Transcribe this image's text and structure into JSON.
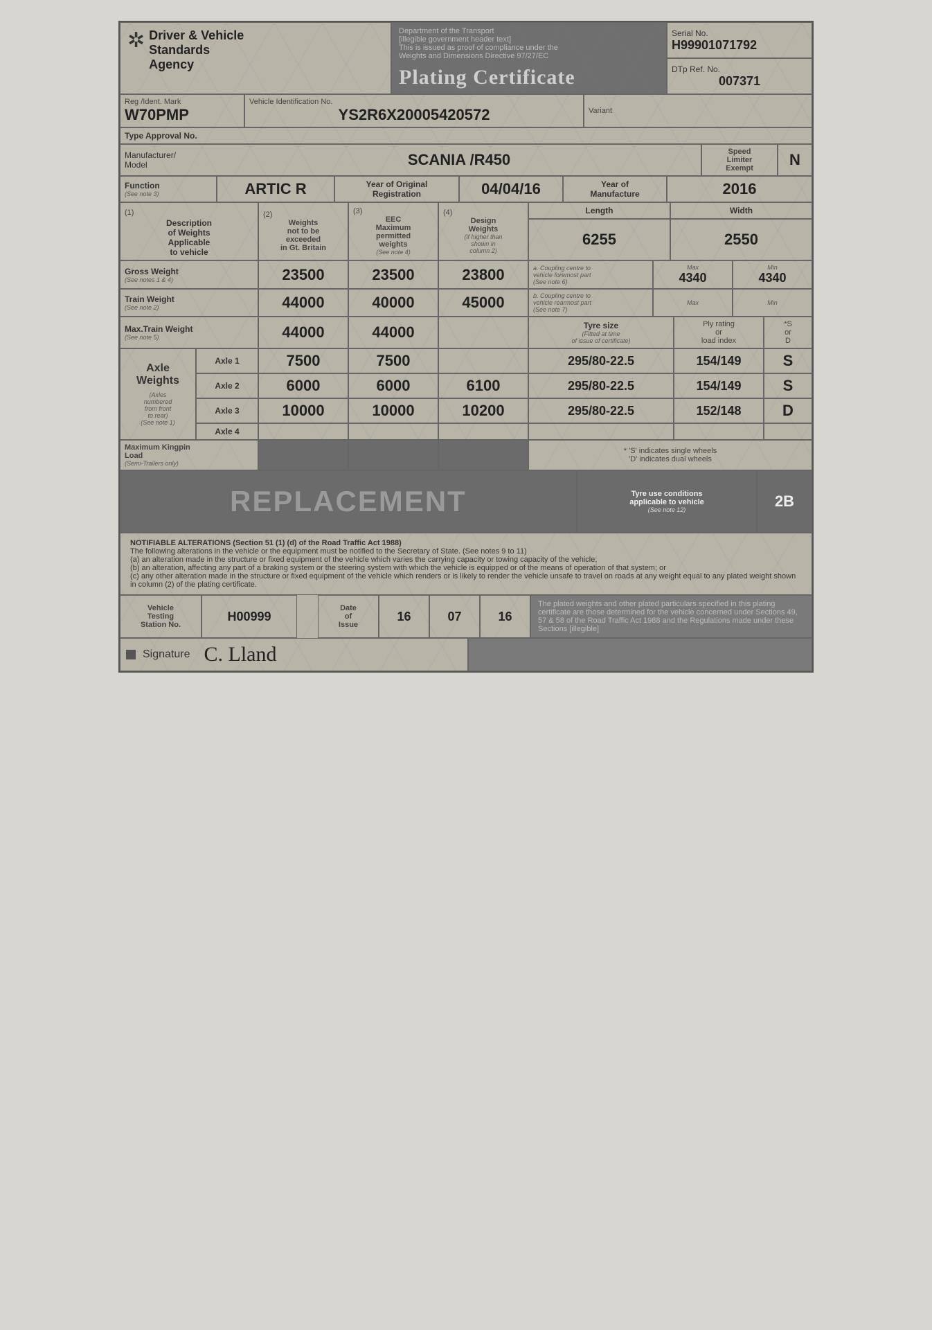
{
  "header": {
    "agency_line1": "Driver & Vehicle",
    "agency_line2": "Standards",
    "agency_line3": "Agency",
    "mid_text_lines": [
      "Department of the Transport",
      "[illegible government header text]",
      "This is issued as proof of compliance under the",
      "Weights and Dimensions Directive 97/27/EC"
    ],
    "plating_title": "Plating Certificate",
    "serial_label": "Serial No.",
    "serial_value": "H99901071792",
    "dtp_label": "DTp Ref. No.",
    "dtp_value": "007371"
  },
  "ident": {
    "reg_label": "Reg /Ident. Mark",
    "reg_value": "W70PMP",
    "vin_label": "Vehicle Identification No.",
    "vin_value": "YS2R6X20005420572",
    "variant_label": "Variant",
    "variant_value": ""
  },
  "approval": {
    "label": "Type Approval No.",
    "value": ""
  },
  "mfr": {
    "label": "Manufacturer/\nModel",
    "value": "SCANIA /R450",
    "speed_label": "Speed\nLimiter\nExempt",
    "speed_value": "N"
  },
  "func": {
    "func_label": "Function",
    "func_note": "(See note 3)",
    "func_value": "ARTIC R",
    "yor_label": "Year of Original\nRegistration",
    "yor_value": "04/04/16",
    "yom_label": "Year of\nManufacture",
    "yom_value": "2016"
  },
  "cols": {
    "c1_num": "(1)",
    "c1": "Description\nof Weights\nApplicable\nto vehicle",
    "c2_num": "(2)",
    "c2": "Weights\nnot to be\nexceeded\nin Gt. Britain",
    "c3_num": "(3)",
    "c3": "EEC\nMaximum\npermitted\nweights",
    "c3_note": "(See note 4)",
    "c4_num": "(4)",
    "c4": "Design\nWeights",
    "c4_note": "(if higher than\nshown in\ncolumn 2)",
    "len_label": "Length",
    "len_value": "6255",
    "wid_label": "Width",
    "wid_value": "2550"
  },
  "gross": {
    "label": "Gross Weight",
    "note": "(See notes 1 & 4)",
    "c2": "23500",
    "c3": "23500",
    "c4": "23800",
    "coup_a_label": "a. Coupling centre to\nvehicle foremost part",
    "coup_a_note": "(See note 6)",
    "max_label": "Max",
    "min_label": "Min",
    "coup_a_max": "4340",
    "coup_a_min": "4340"
  },
  "train": {
    "label": "Train Weight",
    "note": "(See note 2)",
    "c2": "44000",
    "c3": "40000",
    "c4": "45000",
    "coup_b_label": "b. Coupling centre to\nvehicle rearmost part",
    "coup_b_note": "(See note 7)",
    "max_label": "Max",
    "min_label": "Min",
    "coup_b_max": "",
    "coup_b_min": ""
  },
  "maxtrain": {
    "label": "Max.Train Weight",
    "note": "(See note 5)",
    "c2": "44000",
    "c3": "44000",
    "c4": "",
    "tyre_label": "Tyre size",
    "tyre_note": "(Fitted at time\nof issue of certificate)",
    "ply_label": "Ply rating\nor\nload index",
    "sd_label": "*S\nor\nD"
  },
  "axles": {
    "side_label": "Axle\nWeights",
    "side_note": "(Axles\nnumbered\nfrom front\nto rear)\n(See note 1)",
    "rows": [
      {
        "name": "Axle 1",
        "c2": "7500",
        "c3": "7500",
        "c4": "",
        "tyre": "295/80-22.5",
        "ply": "154/149",
        "sd": "S"
      },
      {
        "name": "Axle 2",
        "c2": "6000",
        "c3": "6000",
        "c4": "6100",
        "tyre": "295/80-22.5",
        "ply": "154/149",
        "sd": "S"
      },
      {
        "name": "Axle 3",
        "c2": "10000",
        "c3": "10000",
        "c4": "10200",
        "tyre": "295/80-22.5",
        "ply": "152/148",
        "sd": "D"
      },
      {
        "name": "Axle 4",
        "c2": "",
        "c3": "",
        "c4": "",
        "tyre": "",
        "ply": "",
        "sd": ""
      }
    ]
  },
  "kingpin": {
    "label": "Maximum Kingpin\nLoad",
    "note": "(Semi-Trailers only)",
    "c2": "",
    "c3": "",
    "c4": "",
    "legend": "* 'S' indicates single wheels\n'D' indicates dual wheels"
  },
  "replace": {
    "text": "REPLACEMENT",
    "tyre_cond_label": "Tyre use conditions\napplicable to vehicle",
    "tyre_cond_note": "(See note 12)",
    "tyre_cond_value": "2B"
  },
  "notifiable": {
    "title": "NOTIFIABLE ALTERATIONS (Section 51 (1) (d) of the Road Traffic Act 1988)",
    "intro": "The following alterations in the vehicle or the equipment must be notified to the Secretary of State. (See notes 9 to 11)",
    "a": "(a) an alteration made in the structure or fixed equipment of the vehicle which varies the carrying capacity or towing capacity of the vehicle;",
    "b": "(b) an alteration, affecting any part of a braking system or the steering system with which the vehicle is equipped or of the means of operation of that system; or",
    "c": "(c) any other alteration made in the structure or fixed equipment of the vehicle which renders or is likely to render the vehicle unsafe to travel on roads at any weight equal to any plated weight shown in column (2) of the plating certificate."
  },
  "footer": {
    "vts_label": "Vehicle\nTesting\nStation No.",
    "vts_value": "H00999",
    "date_label": "Date\nof\nIssue",
    "date_d": "16",
    "date_m": "07",
    "date_y": "16",
    "sig_label": "Signature",
    "sig_value": "C. Lland",
    "legal": "The plated weights and other plated particulars specified in this plating certificate are those determined for the vehicle concerned under Sections 49, 57 & 58 of the Road Traffic Act 1988 and the Regulations made under these Sections [illegible]"
  }
}
